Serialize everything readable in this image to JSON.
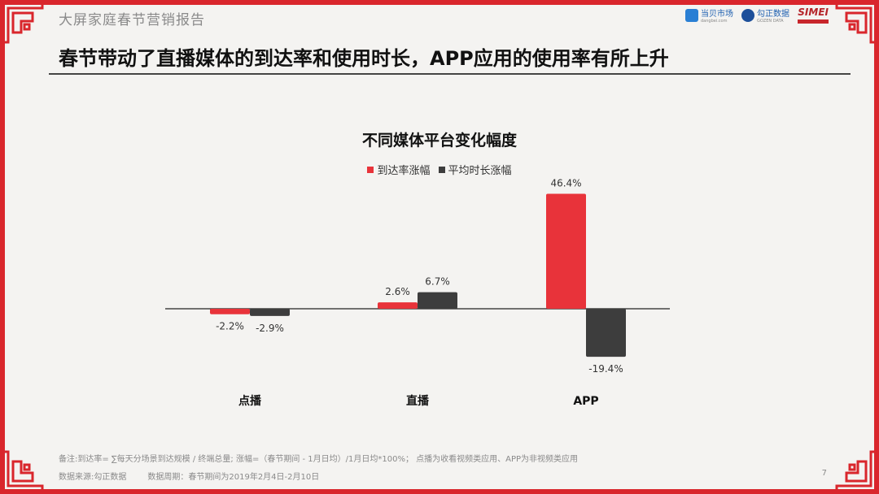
{
  "header": {
    "report_title": "大屏家庭春节营销报告",
    "logos": [
      {
        "name": "当贝市场",
        "sub": "dangbei.com"
      },
      {
        "name": "勾正数据",
        "sub": "GOZEN DATA"
      },
      {
        "name": "SIMEI",
        "sub": ""
      }
    ]
  },
  "headline": "春节带动了直播媒体的到达率和使用时长，APP应用的使用率有所上升",
  "colors": {
    "accent": "#d9262c",
    "reach": "#e8333a",
    "duration": "#3d3d3d"
  },
  "chart_data": {
    "type": "bar",
    "title": "不同媒体平台变化幅度",
    "categories": [
      "点播",
      "直播",
      "APP"
    ],
    "series": [
      {
        "name": "到达率涨幅",
        "values": [
          -2.2,
          2.6,
          46.4
        ],
        "labels": [
          "-2.2%",
          "2.6%",
          "46.4%"
        ]
      },
      {
        "name": "平均时长涨幅",
        "values": [
          -2.9,
          6.7,
          -19.4
        ],
        "labels": [
          "-2.9%",
          "6.7%",
          "-19.4%"
        ]
      }
    ],
    "ylim": [
      -25,
      50
    ],
    "grid": false,
    "legend": "top-center",
    "xlabel": "",
    "ylabel": ""
  },
  "footer": {
    "note": "备注:到达率= ∑每天分场景到达规模 / 终端总量;  涨幅=（春节期间 -  1月日均）/1月日均*100%；  点播为收看视频类应用、APP为非视频类应用",
    "source": "数据来源:勾正数据",
    "period": "数据周期：春节期间为2019年2月4日-2月10日",
    "page": "7"
  }
}
